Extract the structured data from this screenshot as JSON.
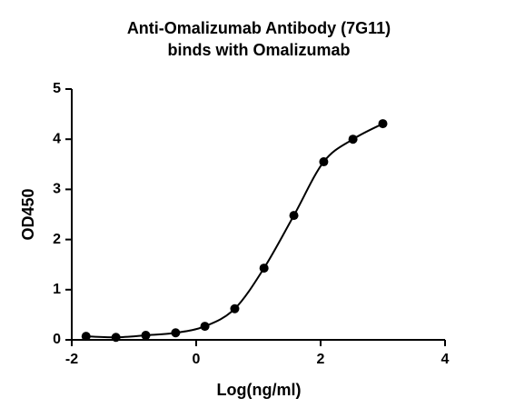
{
  "chart_data": {
    "type": "scatter",
    "title": [
      "Anti-Omalizumab Antibody (7G11)",
      "binds with Omalizumab"
    ],
    "x_label": "Log(ng/ml)",
    "y_label": "OD450",
    "x": [
      -1.77,
      -1.29,
      -0.81,
      -0.33,
      0.14,
      0.62,
      1.09,
      1.57,
      2.05,
      2.52,
      3.0
    ],
    "y": [
      0.07,
      0.05,
      0.09,
      0.14,
      0.27,
      0.62,
      1.43,
      2.48,
      3.55,
      4.0,
      4.31
    ],
    "color": "#000000",
    "xlim": [
      -2,
      4
    ],
    "xticks": [
      -2,
      0,
      2,
      4
    ],
    "ylim": [
      0,
      5
    ],
    "yticks": [
      0,
      1,
      2,
      3,
      4,
      5
    ],
    "grid": false
  }
}
